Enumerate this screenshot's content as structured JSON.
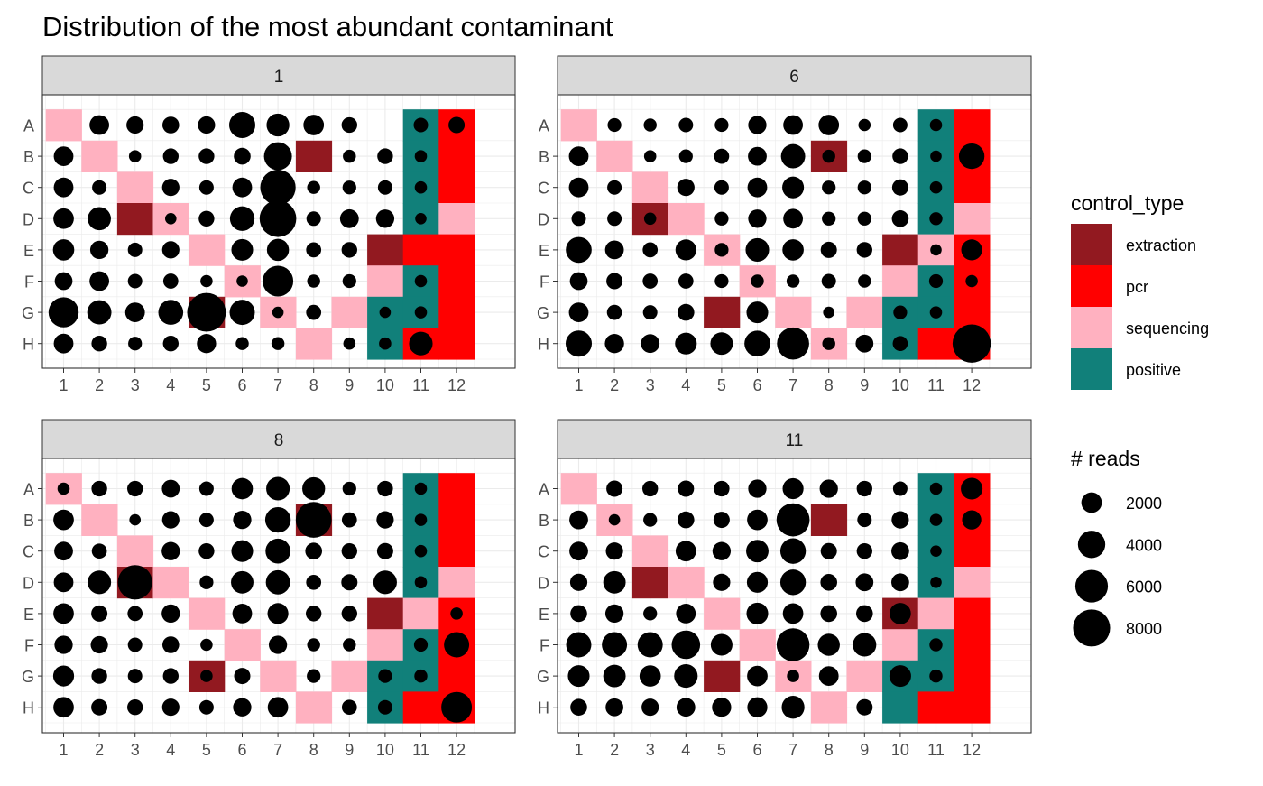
{
  "chart_data": {
    "type": "scatter",
    "title": "Distribution of the most abundant contaminant",
    "x_ticks": [
      "1",
      "2",
      "3",
      "4",
      "5",
      "6",
      "7",
      "8",
      "9",
      "10",
      "11",
      "12"
    ],
    "y_ticks": [
      "A",
      "B",
      "C",
      "D",
      "E",
      "F",
      "G",
      "H"
    ],
    "control_legend": {
      "title": "control_type",
      "entries": [
        {
          "label": "extraction",
          "color": "#921920"
        },
        {
          "label": "pcr",
          "color": "#FF0000"
        },
        {
          "label": "sequencing",
          "color": "#FFB1C0"
        },
        {
          "label": "positive",
          "color": "#11807A"
        }
      ]
    },
    "size_legend": {
      "title": "# reads",
      "entries": [
        {
          "label": "2000",
          "value": 2000
        },
        {
          "label": "4000",
          "value": 4000
        },
        {
          "label": "6000",
          "value": 6000
        },
        {
          "label": "8000",
          "value": 8000
        }
      ]
    },
    "panels": [
      {
        "label": "1",
        "controls": [
          "SxxxxxxxxxPR",
          "xSxxxxxExxPR",
          "xxSxxxxxxxPR",
          "xxESxxxxxxPS",
          "xxxxSxxxxERR",
          "xxxxxSxxxSPR",
          "xxxxExSxSPPR",
          "xxxxxxxSxPRR"
        ],
        "reads": [
          [
            0,
            1800,
            1300,
            1200,
            1300,
            3600,
            2600,
            2000,
            1000,
            0,
            800,
            1100
          ],
          [
            1800,
            0,
            500,
            1000,
            1000,
            1200,
            4200,
            0,
            600,
            1000,
            500,
            0
          ],
          [
            1800,
            800,
            0,
            1300,
            800,
            1800,
            7200,
            600,
            700,
            800,
            500,
            0
          ],
          [
            2000,
            2700,
            0,
            400,
            1000,
            3100,
            7800,
            800,
            1600,
            1500,
            400,
            0
          ],
          [
            2200,
            1500,
            800,
            1300,
            0,
            2300,
            2400,
            900,
            1000,
            0,
            0,
            0
          ],
          [
            1400,
            1800,
            800,
            900,
            500,
            400,
            5200,
            600,
            700,
            0,
            500,
            0
          ],
          [
            5000,
            3000,
            1800,
            3200,
            8800,
            3300,
            400,
            900,
            0,
            400,
            500,
            0
          ],
          [
            1800,
            1000,
            700,
            1000,
            1700,
            600,
            600,
            0,
            500,
            500,
            2800,
            0
          ]
        ]
      },
      {
        "label": "6",
        "controls": [
          "SxxxxxxxxxPR",
          "xSxxxxxExxPR",
          "xxSxxxxxxxPR",
          "xxESxxxxxxPS",
          "xxxxSxxxxESR",
          "xxxxxSxxxSPR",
          "xxxxExSxSPPR",
          "xxxxxxxSxPRR"
        ],
        "reads": [
          [
            0,
            700,
            600,
            800,
            700,
            1500,
            1800,
            2000,
            500,
            800,
            500,
            0
          ],
          [
            1800,
            0,
            500,
            700,
            900,
            1600,
            3000,
            600,
            700,
            1000,
            400,
            3400
          ],
          [
            1800,
            800,
            0,
            1300,
            800,
            1800,
            2300,
            700,
            700,
            1100,
            500,
            0
          ],
          [
            800,
            800,
            500,
            0,
            700,
            1500,
            1800,
            700,
            700,
            1200,
            600,
            0
          ],
          [
            3500,
            1600,
            900,
            2100,
            700,
            2800,
            2200,
            1100,
            1000,
            0,
            400,
            2100
          ],
          [
            1400,
            1100,
            900,
            900,
            700,
            600,
            600,
            800,
            600,
            0,
            700,
            500
          ],
          [
            1800,
            900,
            800,
            1200,
            0,
            2300,
            0,
            400,
            0,
            700,
            500,
            0
          ],
          [
            3600,
            1700,
            1600,
            2300,
            2500,
            3500,
            5800,
            600,
            1400,
            900,
            0,
            8600
          ]
        ]
      },
      {
        "label": "8",
        "controls": [
          "SxxxxxxxxxPR",
          "xSxxxxxExxPR",
          "xxSxxxxxxxPR",
          "xxESxxxxxxPS",
          "xxxxSxxxxESR",
          "xxxxxSxxxSPR",
          "xxxxExSxSPPR",
          "xxxxxxxSxPRR"
        ],
        "reads": [
          [
            500,
            1000,
            1000,
            1400,
            800,
            2200,
            2800,
            2600,
            700,
            1000,
            500,
            0
          ],
          [
            2000,
            0,
            400,
            1300,
            800,
            1500,
            3400,
            7400,
            900,
            1300,
            500,
            0
          ],
          [
            1600,
            900,
            0,
            1500,
            1000,
            2300,
            3200,
            1200,
            1000,
            1100,
            500,
            0
          ],
          [
            1800,
            2800,
            6800,
            0,
            700,
            2500,
            3000,
            900,
            1100,
            2800,
            500,
            0
          ],
          [
            2000,
            1100,
            900,
            1500,
            0,
            1800,
            2100,
            1000,
            1000,
            0,
            0,
            500
          ],
          [
            1500,
            1300,
            800,
            1200,
            500,
            0,
            1500,
            600,
            600,
            0,
            700,
            3300
          ],
          [
            2100,
            1000,
            800,
            1000,
            500,
            1100,
            0,
            700,
            0,
            700,
            600,
            0
          ],
          [
            2000,
            1100,
            1000,
            1300,
            800,
            1500,
            2000,
            0,
            900,
            800,
            0,
            5200
          ]
        ]
      },
      {
        "label": "11",
        "controls": [
          "SxxxxxxxxxPR",
          "xSxxxxxExxPR",
          "xxSxxxxxxxPR",
          "xxESxxxxxxPS",
          "xxxxSxxxxESR",
          "xxxxxSxxxSPR",
          "xxxxExSxSPPR",
          "xxxxxxxSxPRR"
        ],
        "reads": [
          [
            0,
            1100,
            1000,
            1100,
            1000,
            1500,
            2100,
            1500,
            1000,
            800,
            500,
            2300
          ],
          [
            1600,
            400,
            700,
            1200,
            1100,
            2000,
            6200,
            0,
            800,
            1300,
            500,
            1700
          ],
          [
            1600,
            1300,
            0,
            2000,
            1500,
            2500,
            3400,
            1100,
            1000,
            1400,
            400,
            0
          ],
          [
            1300,
            2500,
            0,
            0,
            1300,
            2100,
            3400,
            1200,
            1400,
            1400,
            400,
            0
          ],
          [
            1200,
            1500,
            700,
            1800,
            0,
            2300,
            2000,
            1200,
            1200,
            2200,
            0,
            0
          ],
          [
            3300,
            3300,
            3300,
            4400,
            2300,
            0,
            6100,
            2400,
            2800,
            0,
            600,
            0
          ],
          [
            2300,
            2500,
            2200,
            2800,
            0,
            2000,
            500,
            1800,
            0,
            2300,
            600,
            0
          ],
          [
            1200,
            1400,
            1300,
            1600,
            1700,
            1900,
            2600,
            0,
            1100,
            0,
            0,
            0
          ]
        ]
      }
    ]
  }
}
